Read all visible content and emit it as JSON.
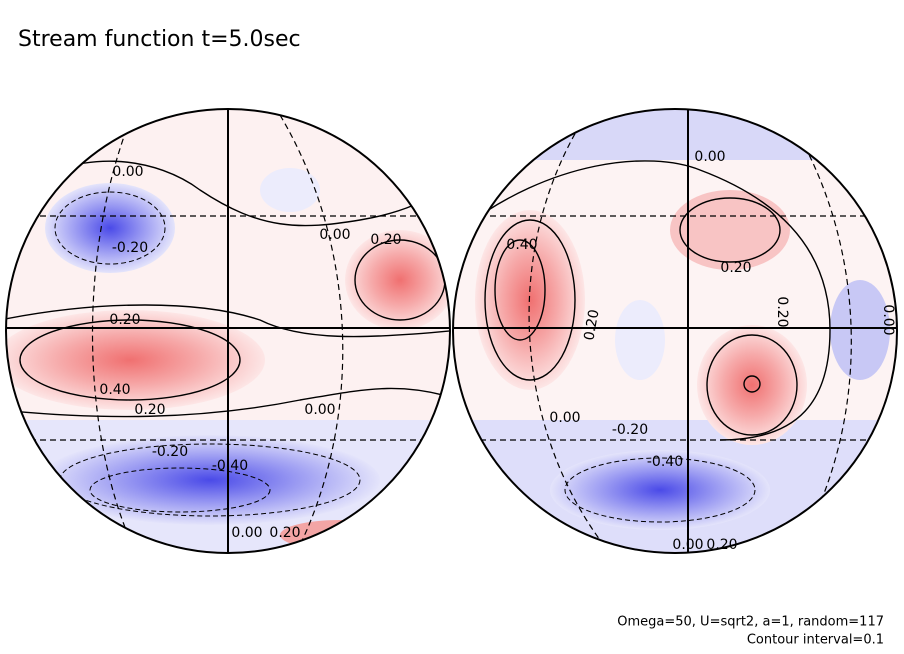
{
  "title": "Stream function t=5.0sec",
  "footnotes": [
    "Omega=50, U=sqrt2, a=1, random=117",
    "Contour interval=0.1"
  ],
  "globes": [
    {
      "labels": [
        "0.00",
        "-0.20",
        "0.00",
        "0.20",
        "0.20",
        "0.40",
        "0.20",
        "0.00",
        "-0.20",
        "-0.40",
        "0.00",
        "0.20"
      ]
    },
    {
      "labels": [
        "0.00",
        "0.40",
        "0.20",
        "0.20",
        "0.20",
        "0.00",
        "-0.20",
        "-0.40",
        "0.00",
        "0.00",
        "0.20"
      ]
    }
  ]
}
